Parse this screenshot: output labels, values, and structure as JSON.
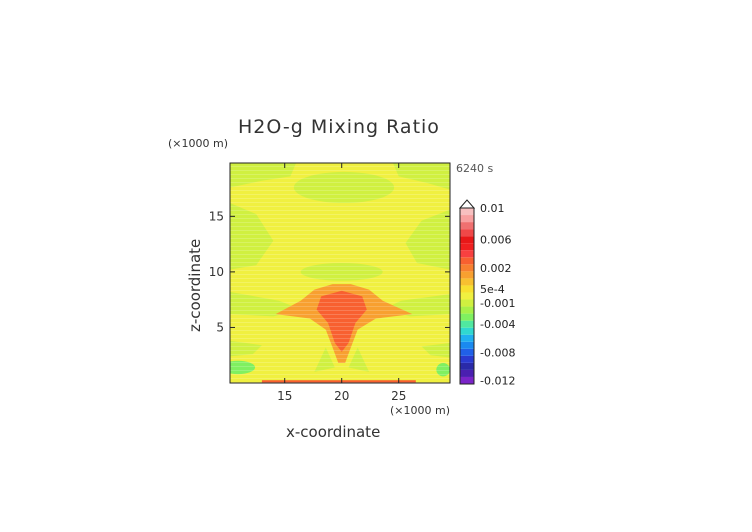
{
  "chart_data": {
    "type": "heatmap",
    "title": "H2O-g Mixing Ratio",
    "xlabel": "x-coordinate",
    "ylabel": "z-coordinate",
    "x_unit": "(×1000 m)",
    "y_unit": "(×1000 m)",
    "time_label": "6240 s",
    "xlim": [
      10.2,
      29.5
    ],
    "ylim": [
      0.0,
      19.8
    ],
    "x_ticks": [
      "15",
      "20",
      "25"
    ],
    "x_tick_values": [
      15,
      20,
      25
    ],
    "y_ticks": [
      "5",
      "10",
      "15"
    ],
    "y_tick_values": [
      5,
      10,
      15
    ],
    "colorbar": {
      "levels": [
        -0.012,
        -0.011,
        -0.01,
        -0.009,
        -0.008,
        -0.007,
        -0.006,
        -0.005,
        -0.004,
        -0.003,
        -0.002,
        -0.001,
        0.0,
        0.0005,
        0.001,
        0.0015,
        0.002,
        0.003,
        0.004,
        0.005,
        0.006,
        0.007,
        0.008,
        0.009,
        0.01
      ],
      "colors": [
        "#7a24c8",
        "#4a1fb0",
        "#2a2aa8",
        "#2a3ad0",
        "#2060e8",
        "#1a8af0",
        "#20b0f0",
        "#30d8d0",
        "#50e8a0",
        "#80f060",
        "#a8f048",
        "#d0f040",
        "#f0f040",
        "#f8e030",
        "#f8c030",
        "#f8a030",
        "#f88030",
        "#f86030",
        "#f84040",
        "#f02020",
        "#e81818",
        "#f04848",
        "#f07070",
        "#f8a0a0",
        "#f8c0c0"
      ],
      "tick_labels": [
        "0.01",
        "0.006",
        "0.002",
        "5e-4",
        "-0.001",
        "-0.004",
        "-0.008",
        "-0.012"
      ],
      "tick_values": [
        0.01,
        0.006,
        0.002,
        0.0005,
        -0.001,
        -0.004,
        -0.008,
        -0.012
      ]
    },
    "field_regions": [
      {
        "name": "background",
        "value": 0.0
      },
      {
        "name": "upper-left-band",
        "value": -0.001
      },
      {
        "name": "upper-right-band",
        "value": -0.001
      },
      {
        "name": "top-center-cap",
        "value": -0.001
      },
      {
        "name": "mid-cap",
        "value": -0.001
      },
      {
        "name": "plume-outer",
        "value": 0.0015
      },
      {
        "name": "plume-core",
        "value": 0.003
      },
      {
        "name": "surface-moist",
        "value": -0.003
      }
    ]
  },
  "icons": {
    "colorbar_top": "triangle-up-icon"
  }
}
